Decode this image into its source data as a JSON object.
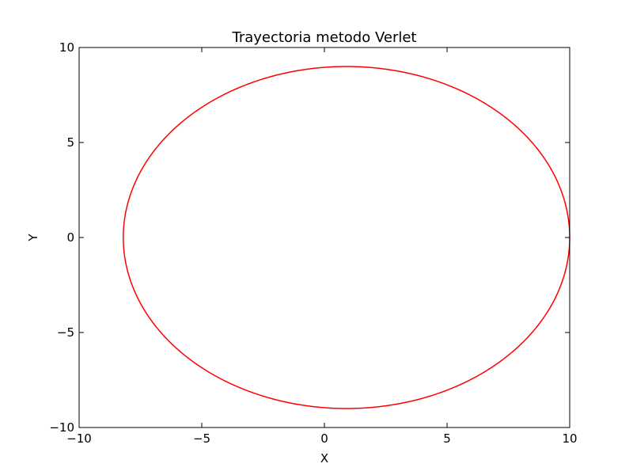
{
  "chart_data": {
    "type": "line",
    "title": "Trayectoria metodo Verlet",
    "xlabel": "X",
    "ylabel": "Y",
    "xlim": [
      -10,
      10
    ],
    "ylim": [
      -10,
      10
    ],
    "xticks": [
      -10,
      -5,
      0,
      5,
      10
    ],
    "yticks": [
      -10,
      -5,
      0,
      5,
      10
    ],
    "xtick_labels": [
      "−10",
      "−5",
      "0",
      "5",
      "10"
    ],
    "ytick_labels": [
      "−10",
      "−5",
      "0",
      "5",
      "10"
    ],
    "grid": false,
    "series": [
      {
        "color": "#ff0000",
        "ellipse": {
          "center": [
            0.9,
            0
          ],
          "semi_axis_x": 9.1,
          "semi_axis_y": 9.0
        }
      }
    ]
  }
}
